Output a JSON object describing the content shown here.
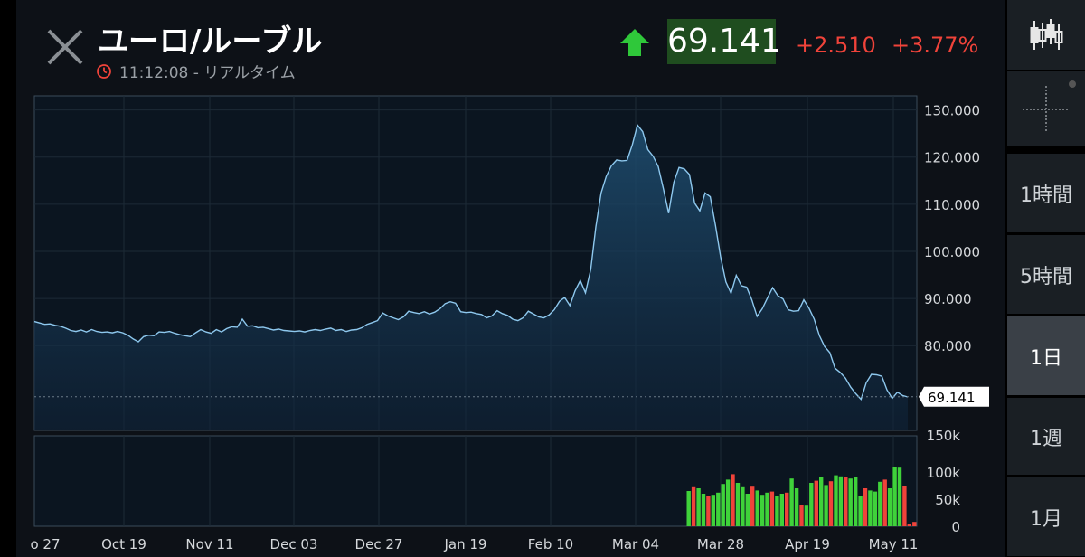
{
  "header": {
    "title": "ユーロ/ルーブル",
    "subtitle": "11:12:08 - リアルタイム",
    "price": "69.141",
    "change": "+2.510",
    "change_pct": "+3.77%",
    "up_color": "#2fc83a",
    "down_color": "#f0433a"
  },
  "toolbar": {
    "buttons": [
      {
        "label": "",
        "icon": "candlestick-icon",
        "active": false
      },
      {
        "label": "",
        "icon": "crosshair-icon",
        "active": false
      },
      {
        "label": "1時間",
        "active": false
      },
      {
        "label": "5時間",
        "active": false
      },
      {
        "label": "1日",
        "active": true
      },
      {
        "label": "1週",
        "active": false
      },
      {
        "label": "1月",
        "active": false
      }
    ]
  },
  "chart_data": {
    "type": "area",
    "last_value_label": "69.141",
    "last_value": 69.141,
    "y_ticks": [
      "130.000",
      "120.000",
      "110.000",
      "100.000",
      "90.000",
      "80.000"
    ],
    "y_tick_values": [
      130,
      120,
      110,
      100,
      90,
      80
    ],
    "ylim": [
      62,
      133
    ],
    "x_ticks": [
      "o 27",
      "Oct 19",
      "Nov 11",
      "Dec 03",
      "Dec 27",
      "Jan 19",
      "Feb 10",
      "Mar 04",
      "Mar 28",
      "Apr 19",
      "May 11"
    ],
    "volume_ticks": [
      "150k",
      "100k",
      "50k",
      "0"
    ],
    "volume_tick_values": [
      150,
      100,
      50,
      0
    ],
    "volume_ylim": [
      0,
      150
    ],
    "price_series": [
      85.1,
      84.8,
      84.5,
      84.6,
      84.3,
      84.1,
      83.7,
      83.2,
      83.0,
      83.3,
      82.9,
      83.4,
      83.0,
      82.8,
      82.9,
      82.7,
      83.0,
      82.7,
      82.2,
      81.4,
      80.8,
      81.9,
      82.2,
      82.1,
      82.9,
      82.8,
      83.0,
      82.6,
      82.3,
      82.1,
      81.9,
      82.7,
      83.4,
      82.9,
      82.6,
      83.4,
      82.9,
      83.6,
      84.0,
      83.9,
      85.6,
      84.1,
      84.2,
      83.8,
      83.9,
      83.6,
      83.3,
      83.5,
      83.2,
      83.1,
      83.0,
      83.1,
      82.9,
      83.2,
      83.4,
      83.2,
      83.5,
      83.7,
      83.2,
      83.4,
      83.0,
      83.3,
      83.4,
      83.8,
      84.5,
      84.9,
      85.3,
      86.9,
      86.3,
      85.9,
      85.5,
      86.1,
      87.3,
      87.0,
      86.8,
      87.2,
      86.7,
      87.1,
      87.8,
      88.9,
      89.3,
      89.0,
      87.2,
      87.0,
      87.1,
      86.8,
      86.6,
      85.9,
      86.3,
      87.4,
      86.8,
      86.4,
      85.6,
      85.3,
      85.9,
      87.3,
      86.7,
      86.1,
      85.9,
      86.5,
      87.6,
      89.4,
      90.2,
      88.5,
      91.6,
      93.8,
      91.2,
      96.1,
      105.2,
      112.4,
      115.9,
      118.2,
      119.4,
      119.2,
      119.3,
      122.6,
      126.8,
      125.4,
      121.6,
      120.2,
      118.0,
      113.2,
      108.1,
      114.7,
      117.8,
      117.5,
      116.3,
      110.2,
      108.6,
      112.4,
      111.6,
      105.5,
      98.8,
      93.5,
      91.1,
      94.9,
      92.7,
      92.4,
      89.7,
      86.2,
      87.8,
      90.1,
      92.3,
      90.6,
      89.9,
      87.6,
      87.3,
      87.4,
      89.7,
      87.9,
      85.6,
      82.1,
      79.8,
      78.5,
      75.2,
      74.3,
      73.1,
      71.2,
      69.8,
      68.6,
      72.1,
      73.9,
      73.8,
      73.5,
      70.6,
      68.8,
      70.1,
      69.4,
      69.1
    ],
    "volume_series": [
      {
        "v": 65,
        "c": "green"
      },
      {
        "v": 72,
        "c": "red"
      },
      {
        "v": 70,
        "c": "green"
      },
      {
        "v": 60,
        "c": "green"
      },
      {
        "v": 55,
        "c": "red"
      },
      {
        "v": 58,
        "c": "green"
      },
      {
        "v": 62,
        "c": "green"
      },
      {
        "v": 78,
        "c": "green"
      },
      {
        "v": 86,
        "c": "green"
      },
      {
        "v": 96,
        "c": "red"
      },
      {
        "v": 80,
        "c": "green"
      },
      {
        "v": 72,
        "c": "green"
      },
      {
        "v": 60,
        "c": "green"
      },
      {
        "v": 73,
        "c": "red"
      },
      {
        "v": 66,
        "c": "green"
      },
      {
        "v": 58,
        "c": "green"
      },
      {
        "v": 62,
        "c": "green"
      },
      {
        "v": 64,
        "c": "red"
      },
      {
        "v": 56,
        "c": "green"
      },
      {
        "v": 60,
        "c": "green"
      },
      {
        "v": 62,
        "c": "red"
      },
      {
        "v": 88,
        "c": "green"
      },
      {
        "v": 70,
        "c": "green"
      },
      {
        "v": 40,
        "c": "red"
      },
      {
        "v": 38,
        "c": "green"
      },
      {
        "v": 80,
        "c": "green"
      },
      {
        "v": 84,
        "c": "red"
      },
      {
        "v": 90,
        "c": "green"
      },
      {
        "v": 76,
        "c": "green"
      },
      {
        "v": 83,
        "c": "red"
      },
      {
        "v": 94,
        "c": "green"
      },
      {
        "v": 92,
        "c": "green"
      },
      {
        "v": 90,
        "c": "red"
      },
      {
        "v": 88,
        "c": "green"
      },
      {
        "v": 90,
        "c": "green"
      },
      {
        "v": 55,
        "c": "green"
      },
      {
        "v": 70,
        "c": "red"
      },
      {
        "v": 66,
        "c": "green"
      },
      {
        "v": 64,
        "c": "green"
      },
      {
        "v": 82,
        "c": "green"
      },
      {
        "v": 86,
        "c": "red"
      },
      {
        "v": 70,
        "c": "green"
      },
      {
        "v": 110,
        "c": "green"
      },
      {
        "v": 108,
        "c": "green"
      },
      {
        "v": 75,
        "c": "red"
      },
      {
        "v": 4,
        "c": "red"
      },
      {
        "v": 8,
        "c": "red"
      }
    ]
  }
}
